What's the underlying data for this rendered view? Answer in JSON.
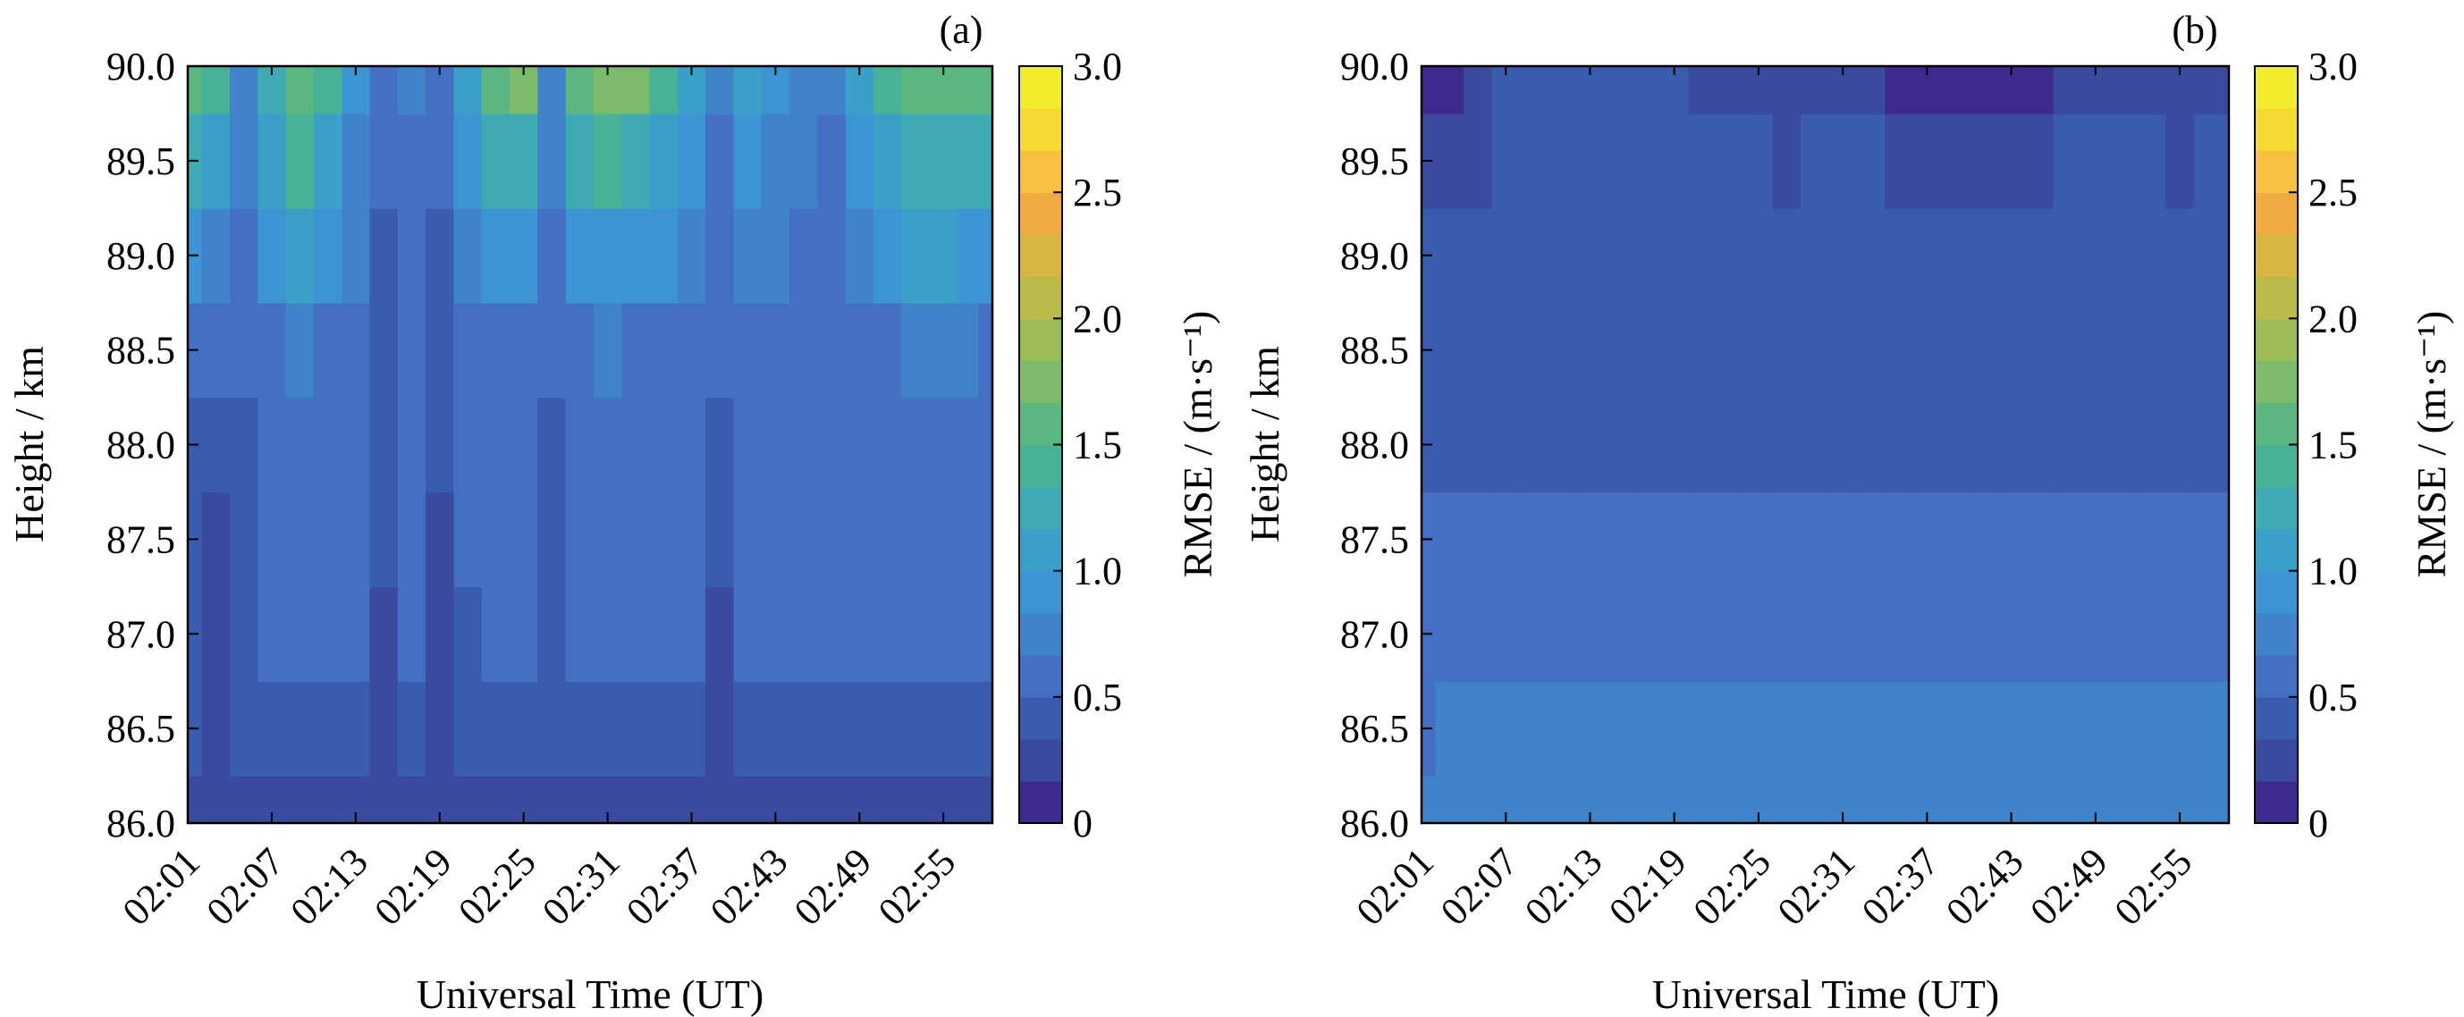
{
  "chart_data": [
    {
      "type": "heatmap",
      "panel_label": "(a)",
      "xlabel": "Universal Time (UT)",
      "ylabel": "Height / km",
      "colorbar_label": "RMSE / (m·s⁻¹)",
      "x_tick_labels": [
        "02:01",
        "02:07",
        "02:13",
        "02:19",
        "02:25",
        "02:31",
        "02:37",
        "02:43",
        "02:49",
        "02:55"
      ],
      "y_tick_labels": [
        "86.0",
        "86.5",
        "87.0",
        "87.5",
        "88.0",
        "88.5",
        "89.0",
        "89.5",
        "90.0"
      ],
      "ylim": [
        86.0,
        90.0
      ],
      "colorbar_ticks": [
        "0",
        "0.5",
        "1.0",
        "1.5",
        "2.0",
        "2.5",
        "3.0"
      ],
      "clim": [
        0,
        3.0
      ],
      "time_minutes": [
        1,
        3,
        5,
        7,
        9,
        11,
        13,
        15,
        17,
        19,
        21,
        23,
        25,
        27,
        29,
        31,
        33,
        35,
        37,
        39,
        41,
        43,
        45,
        47,
        49,
        51,
        53,
        55,
        57,
        58
      ],
      "height_km": [
        86.0,
        86.5,
        87.0,
        87.5,
        88.0,
        88.5,
        89.0,
        89.5,
        90.0
      ],
      "rmse": [
        [
          0.3,
          0.3,
          0.3,
          0.3,
          0.3,
          0.3,
          0.3,
          0.3,
          0.3,
          0.3,
          0.3,
          0.3,
          0.3,
          0.3,
          0.3,
          0.3,
          0.3,
          0.3,
          0.3,
          0.3,
          0.3,
          0.3,
          0.3,
          0.3,
          0.3,
          0.3,
          0.3,
          0.3,
          0.3,
          0.3
        ],
        [
          0.35,
          0.3,
          0.35,
          0.4,
          0.45,
          0.45,
          0.4,
          0.3,
          0.4,
          0.3,
          0.35,
          0.4,
          0.45,
          0.4,
          0.35,
          0.4,
          0.4,
          0.4,
          0.35,
          0.3,
          0.4,
          0.4,
          0.4,
          0.4,
          0.45,
          0.45,
          0.45,
          0.45,
          0.4,
          0.4
        ],
        [
          0.45,
          0.3,
          0.45,
          0.55,
          0.6,
          0.5,
          0.55,
          0.3,
          0.5,
          0.3,
          0.45,
          0.55,
          0.6,
          0.35,
          0.5,
          0.55,
          0.5,
          0.55,
          0.5,
          0.3,
          0.5,
          0.5,
          0.5,
          0.5,
          0.5,
          0.5,
          0.5,
          0.5,
          0.5,
          0.5
        ],
        [
          0.45,
          0.3,
          0.45,
          0.5,
          0.55,
          0.55,
          0.55,
          0.35,
          0.5,
          0.3,
          0.5,
          0.55,
          0.55,
          0.4,
          0.5,
          0.55,
          0.55,
          0.55,
          0.5,
          0.35,
          0.55,
          0.55,
          0.55,
          0.55,
          0.55,
          0.55,
          0.55,
          0.55,
          0.55,
          0.55
        ],
        [
          0.4,
          0.35,
          0.45,
          0.55,
          0.55,
          0.55,
          0.55,
          0.4,
          0.5,
          0.35,
          0.55,
          0.55,
          0.55,
          0.45,
          0.55,
          0.55,
          0.55,
          0.55,
          0.55,
          0.45,
          0.55,
          0.55,
          0.55,
          0.55,
          0.55,
          0.55,
          0.55,
          0.55,
          0.55,
          0.55
        ],
        [
          0.6,
          0.55,
          0.6,
          0.6,
          0.75,
          0.55,
          0.6,
          0.4,
          0.55,
          0.4,
          0.6,
          0.6,
          0.65,
          0.55,
          0.65,
          0.7,
          0.65,
          0.6,
          0.6,
          0.55,
          0.65,
          0.6,
          0.6,
          0.55,
          0.6,
          0.65,
          0.75,
          0.7,
          0.7,
          0.65
        ],
        [
          0.9,
          0.8,
          0.6,
          0.85,
          1.1,
          0.85,
          0.7,
          0.45,
          0.6,
          0.45,
          0.75,
          0.9,
          0.95,
          0.6,
          0.9,
          0.95,
          0.9,
          0.85,
          0.75,
          0.6,
          0.75,
          0.7,
          0.65,
          0.6,
          0.8,
          0.9,
          1.0,
          1.0,
          0.95,
          0.9
        ],
        [
          1.25,
          1.1,
          0.7,
          1.0,
          1.35,
          1.1,
          0.8,
          0.5,
          0.65,
          0.5,
          0.9,
          1.2,
          1.3,
          0.7,
          1.2,
          1.35,
          1.3,
          1.15,
          0.9,
          0.65,
          0.9,
          0.8,
          0.7,
          0.65,
          0.95,
          1.15,
          1.3,
          1.3,
          1.25,
          1.2
        ],
        [
          1.6,
          1.4,
          0.8,
          1.2,
          1.6,
          1.35,
          0.9,
          0.55,
          0.7,
          0.55,
          1.1,
          1.5,
          1.7,
          0.8,
          1.5,
          1.75,
          1.7,
          1.45,
          1.05,
          0.7,
          1.05,
          0.9,
          0.75,
          0.7,
          1.1,
          1.45,
          1.6,
          1.6,
          1.55,
          1.5
        ]
      ]
    },
    {
      "type": "heatmap",
      "panel_label": "(b)",
      "xlabel": "Universal Time (UT)",
      "ylabel": "Height / km",
      "colorbar_label": "RMSE / (m·s⁻¹)",
      "x_tick_labels": [
        "02:01",
        "02:07",
        "02:13",
        "02:19",
        "02:25",
        "02:31",
        "02:37",
        "02:43",
        "02:49",
        "02:55"
      ],
      "y_tick_labels": [
        "86.0",
        "86.5",
        "87.0",
        "87.5",
        "88.0",
        "88.5",
        "89.0",
        "89.5",
        "90.0"
      ],
      "ylim": [
        86.0,
        90.0
      ],
      "colorbar_ticks": [
        "0",
        "0.5",
        "1.0",
        "1.5",
        "2.0",
        "2.5",
        "3.0"
      ],
      "clim": [
        0,
        3.0
      ],
      "time_minutes": [
        1,
        3,
        5,
        7,
        9,
        11,
        13,
        15,
        17,
        19,
        21,
        23,
        25,
        27,
        29,
        31,
        33,
        35,
        37,
        39,
        41,
        43,
        45,
        47,
        49,
        51,
        53,
        55,
        57,
        58
      ],
      "height_km": [
        86.0,
        86.5,
        87.0,
        87.5,
        88.0,
        88.5,
        89.0,
        89.5,
        90.0
      ],
      "rmse": [
        [
          0.8,
          0.8,
          0.8,
          0.8,
          0.8,
          0.8,
          0.8,
          0.8,
          0.8,
          0.8,
          0.8,
          0.8,
          0.8,
          0.8,
          0.8,
          0.8,
          0.8,
          0.8,
          0.8,
          0.8,
          0.8,
          0.8,
          0.8,
          0.8,
          0.8,
          0.8,
          0.8,
          0.8,
          0.8,
          0.8
        ],
        [
          0.65,
          0.75,
          0.7,
          0.7,
          0.7,
          0.75,
          0.7,
          0.7,
          0.7,
          0.7,
          0.7,
          0.7,
          0.7,
          0.75,
          0.75,
          0.7,
          0.7,
          0.7,
          0.7,
          0.7,
          0.7,
          0.7,
          0.7,
          0.7,
          0.7,
          0.75,
          0.7,
          0.75,
          0.75,
          0.7
        ],
        [
          0.55,
          0.55,
          0.55,
          0.55,
          0.55,
          0.55,
          0.55,
          0.55,
          0.55,
          0.55,
          0.55,
          0.55,
          0.55,
          0.55,
          0.55,
          0.55,
          0.55,
          0.55,
          0.55,
          0.55,
          0.55,
          0.55,
          0.55,
          0.55,
          0.55,
          0.55,
          0.55,
          0.55,
          0.55,
          0.55
        ],
        [
          0.5,
          0.5,
          0.5,
          0.5,
          0.55,
          0.55,
          0.5,
          0.5,
          0.55,
          0.5,
          0.5,
          0.5,
          0.5,
          0.5,
          0.55,
          0.55,
          0.5,
          0.5,
          0.5,
          0.5,
          0.5,
          0.5,
          0.5,
          0.5,
          0.5,
          0.5,
          0.5,
          0.5,
          0.5,
          0.5
        ],
        [
          0.45,
          0.45,
          0.4,
          0.4,
          0.45,
          0.45,
          0.45,
          0.4,
          0.45,
          0.45,
          0.45,
          0.4,
          0.4,
          0.4,
          0.45,
          0.45,
          0.45,
          0.4,
          0.4,
          0.4,
          0.45,
          0.45,
          0.45,
          0.4,
          0.4,
          0.45,
          0.45,
          0.45,
          0.45,
          0.4
        ],
        [
          0.35,
          0.35,
          0.35,
          0.35,
          0.35,
          0.35,
          0.35,
          0.35,
          0.35,
          0.35,
          0.35,
          0.35,
          0.35,
          0.35,
          0.35,
          0.35,
          0.35,
          0.35,
          0.35,
          0.35,
          0.35,
          0.35,
          0.35,
          0.35,
          0.35,
          0.35,
          0.35,
          0.35,
          0.35,
          0.35
        ],
        [
          0.35,
          0.35,
          0.35,
          0.35,
          0.35,
          0.35,
          0.35,
          0.35,
          0.35,
          0.35,
          0.35,
          0.35,
          0.35,
          0.35,
          0.35,
          0.35,
          0.35,
          0.35,
          0.35,
          0.35,
          0.35,
          0.35,
          0.35,
          0.35,
          0.35,
          0.35,
          0.35,
          0.35,
          0.35,
          0.35
        ],
        [
          0.25,
          0.2,
          0.3,
          0.35,
          0.35,
          0.35,
          0.35,
          0.35,
          0.35,
          0.35,
          0.35,
          0.35,
          0.35,
          0.3,
          0.35,
          0.35,
          0.35,
          0.2,
          0.2,
          0.2,
          0.2,
          0.2,
          0.2,
          0.35,
          0.35,
          0.35,
          0.35,
          0.3,
          0.35,
          0.35
        ],
        [
          0.15,
          0.15,
          0.2,
          0.35,
          0.35,
          0.35,
          0.35,
          0.35,
          0.35,
          0.35,
          0.3,
          0.3,
          0.3,
          0.2,
          0.2,
          0.3,
          0.3,
          0.15,
          0.15,
          0.15,
          0.15,
          0.15,
          0.15,
          0.3,
          0.3,
          0.3,
          0.3,
          0.2,
          0.3,
          0.25
        ]
      ]
    }
  ],
  "colormap": [
    "#3e2a8c",
    "#3a4a9e",
    "#3a5cae",
    "#4470c4",
    "#3f84c8",
    "#3c94d2",
    "#3aa0c8",
    "#3eaab4",
    "#47b294",
    "#5cb680",
    "#7cba6c",
    "#9cbc58",
    "#bcba48",
    "#d8b440",
    "#f0aa44",
    "#f8c040",
    "#f6d832",
    "#f2ec2c"
  ]
}
